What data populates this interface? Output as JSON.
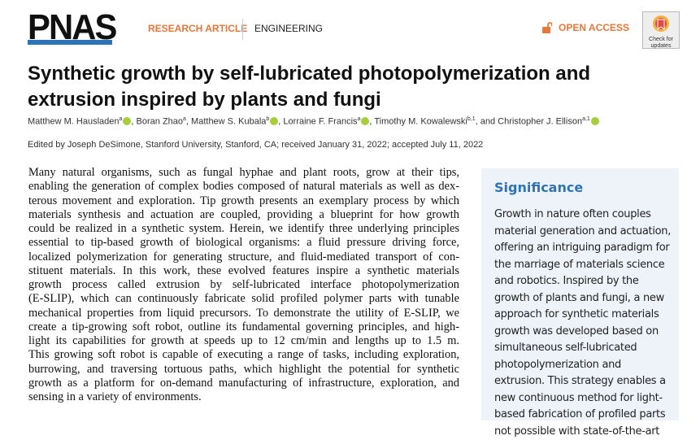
{
  "header": {
    "logo": "PNAS",
    "article_type": "RESEARCH ARTICLE",
    "subject": "ENGINEERING",
    "open_access": "OPEN ACCESS",
    "check_updates": "Check for updates",
    "accent": "#e8773a",
    "brand": "#2d73b8"
  },
  "title": "Synthetic growth by self-lubricated photopolymerization and extrusion inspired by plants and fungi",
  "authors": [
    {
      "name": "Matthew M. Hausladen",
      "sup": "a",
      "orcid": true
    },
    {
      "name": "Boran Zhao",
      "sup": "a",
      "orcid": false
    },
    {
      "name": "Matthew S. Kubala",
      "sup": "b",
      "orcid": true
    },
    {
      "name": "Lorraine F. Francis",
      "sup": "a",
      "orcid": true
    },
    {
      "name": "Timothy M. Kowalewski",
      "sup": "b,1",
      "orcid": false
    },
    {
      "name": "and Christopher J. Ellison",
      "sup": "a,1",
      "orcid": true
    }
  ],
  "edited": "Edited by Joseph DeSimone, Stanford University, Stanford, CA; received January 31, 2022; accepted July 11, 2022",
  "abstract_lines": [
    "Many natural organisms, such as fungal hyphae and plant roots, grow at their tips,",
    "enabling the generation of complex bodies composed of natural materials as well as dex-",
    "terous movement and exploration. Tip growth presents an exemplary process by which",
    "materials synthesis and actuation are coupled, providing a blueprint for how growth",
    "could be realized in a synthetic system. Herein, we identify three underlying principles",
    "essential to tip-based growth of biological organisms: a fluid pressure driving force,",
    "localized polymerization for generating structure, and fluid-mediated transport of con-",
    "stituent materials. In this work, these evolved features inspire a synthetic materials",
    "growth process called extrusion by self-lubricated interface photopolymerization",
    "(E-SLIP), which can continuously fabricate solid profiled polymer parts with tunable",
    "mechanical properties from liquid precursors. To demonstrate the utility of E-SLIP, we",
    "create a tip-growing soft robot, outline its fundamental governing principles, and high-",
    "light its capabilities for growth at speeds up to 12 cm/min and lengths up to 1.5 m.",
    "This growing soft robot is capable of executing a range of tasks, including exploration,",
    "burrowing, and traversing tortuous paths, which highlight the potential for synthetic",
    "growth as a platform for on-demand manufacturing of infrastructure, exploration, and",
    "sensing in a variety of environments."
  ],
  "significance": {
    "heading": "Significance",
    "lines": [
      "Growth in nature often couples",
      "material generation and actuation,",
      "offering an intriguing paradigm for",
      "the marriage of materials science",
      "and robotics. Inspired by the",
      "growth of plants and fungi, a new",
      "approach for synthetic materials",
      "growth was developed based on",
      "simultaneous self-lubricated",
      "photopolymerization and",
      "extrusion. This strategy enables a",
      "new continuous method for light-",
      "based fabrication of profiled parts",
      "not possible with state-of-the-art"
    ]
  }
}
